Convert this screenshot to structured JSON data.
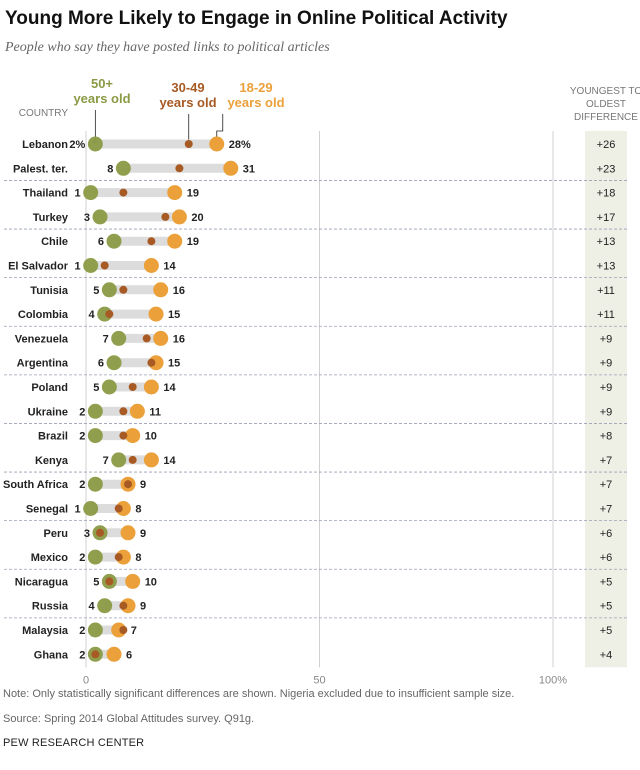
{
  "title": "Young More Likely to Engage in Online Political Activity",
  "subtitle": "People who say they have posted links to political articles",
  "note": "Note: Only statistically significant differences are shown. Nigeria excluded due to insufficient sample size.",
  "source": "Source: Spring 2014 Global Attitudes survey. Q91g.",
  "brand": "PEW RESEARCH CENTER",
  "colors": {
    "age50": "#8a9a45",
    "age3049": "#a85a24",
    "age1829": "#eba03a",
    "track": "#dcdcdc",
    "diff_bg": "#eef0e6"
  },
  "chart_data": {
    "type": "dot",
    "title": "Young More Likely to Engage in Online Political Activity",
    "country_header": "COUNTRY",
    "diff_header": [
      "YOUNGEST TO",
      "OLDEST",
      "DIFFERENCE"
    ],
    "legend": [
      {
        "key": "age50",
        "line1": "50+",
        "line2": "years old"
      },
      {
        "key": "age3049",
        "line1": "30-49",
        "line2": "years old"
      },
      {
        "key": "age1829",
        "line1": "18-29",
        "line2": "years old"
      }
    ],
    "xlim": [
      0,
      100
    ],
    "x_ticks": [
      0,
      50,
      100
    ],
    "x_tick_labels": [
      "0",
      "50",
      "100%"
    ],
    "rows": [
      {
        "country": "Lebanon",
        "age50": 2,
        "age3049": 22,
        "age1829": 28,
        "label50": "2%",
        "label1829": "28%",
        "diff": "+26"
      },
      {
        "country": "Palest. ter.",
        "age50": 8,
        "age3049": 20,
        "age1829": 31,
        "label50": "8",
        "label1829": "31",
        "diff": "+23"
      },
      {
        "country": "Thailand",
        "age50": 1,
        "age3049": 8,
        "age1829": 19,
        "label50": "1",
        "label1829": "19",
        "diff": "+18"
      },
      {
        "country": "Turkey",
        "age50": 3,
        "age3049": 17,
        "age1829": 20,
        "label50": "3",
        "label1829": "20",
        "diff": "+17"
      },
      {
        "country": "Chile",
        "age50": 6,
        "age3049": 14,
        "age1829": 19,
        "label50": "6",
        "label1829": "19",
        "diff": "+13"
      },
      {
        "country": "El Salvador",
        "age50": 1,
        "age3049": 4,
        "age1829": 14,
        "label50": "1",
        "label1829": "14",
        "diff": "+13"
      },
      {
        "country": "Tunisia",
        "age50": 5,
        "age3049": 8,
        "age1829": 16,
        "label50": "5",
        "label1829": "16",
        "diff": "+11"
      },
      {
        "country": "Colombia",
        "age50": 4,
        "age3049": 5,
        "age1829": 15,
        "label50": "4",
        "label1829": "15",
        "diff": "+11"
      },
      {
        "country": "Venezuela",
        "age50": 7,
        "age3049": 13,
        "age1829": 16,
        "label50": "7",
        "label1829": "16",
        "diff": "+9"
      },
      {
        "country": "Argentina",
        "age50": 6,
        "age3049": 14,
        "age1829": 15,
        "label50": "6",
        "label1829": "15",
        "diff": "+9"
      },
      {
        "country": "Poland",
        "age50": 5,
        "age3049": 10,
        "age1829": 14,
        "label50": "5",
        "label1829": "14",
        "diff": "+9"
      },
      {
        "country": "Ukraine",
        "age50": 2,
        "age3049": 8,
        "age1829": 11,
        "label50": "2",
        "label1829": "11",
        "diff": "+9"
      },
      {
        "country": "Brazil",
        "age50": 2,
        "age3049": 8,
        "age1829": 10,
        "label50": "2",
        "label1829": "10",
        "diff": "+8"
      },
      {
        "country": "Kenya",
        "age50": 7,
        "age3049": 10,
        "age1829": 14,
        "label50": "7",
        "label1829": "14",
        "diff": "+7"
      },
      {
        "country": "South Africa",
        "age50": 2,
        "age3049": 9,
        "age1829": 9,
        "label50": "2",
        "label1829": "9",
        "diff": "+7"
      },
      {
        "country": "Senegal",
        "age50": 1,
        "age3049": 7,
        "age1829": 8,
        "label50": "1",
        "label1829": "8",
        "diff": "+7"
      },
      {
        "country": "Peru",
        "age50": 3,
        "age3049": 3,
        "age1829": 9,
        "label50": "3",
        "label1829": "9",
        "diff": "+6"
      },
      {
        "country": "Mexico",
        "age50": 2,
        "age3049": 7,
        "age1829": 8,
        "label50": "2",
        "label1829": "8",
        "diff": "+6"
      },
      {
        "country": "Nicaragua",
        "age50": 5,
        "age3049": 5,
        "age1829": 10,
        "label50": "5",
        "label1829": "10",
        "diff": "+5"
      },
      {
        "country": "Russia",
        "age50": 4,
        "age3049": 8,
        "age1829": 9,
        "label50": "4",
        "label1829": "9",
        "diff": "+5"
      },
      {
        "country": "Malaysia",
        "age50": 2,
        "age3049": 8,
        "age1829": 7,
        "label50": "2",
        "label1829": "7",
        "diff": "+5"
      },
      {
        "country": "Ghana",
        "age50": 2,
        "age3049": 2,
        "age1829": 6,
        "label50": "2",
        "label1829": "6",
        "diff": "+4"
      }
    ]
  }
}
